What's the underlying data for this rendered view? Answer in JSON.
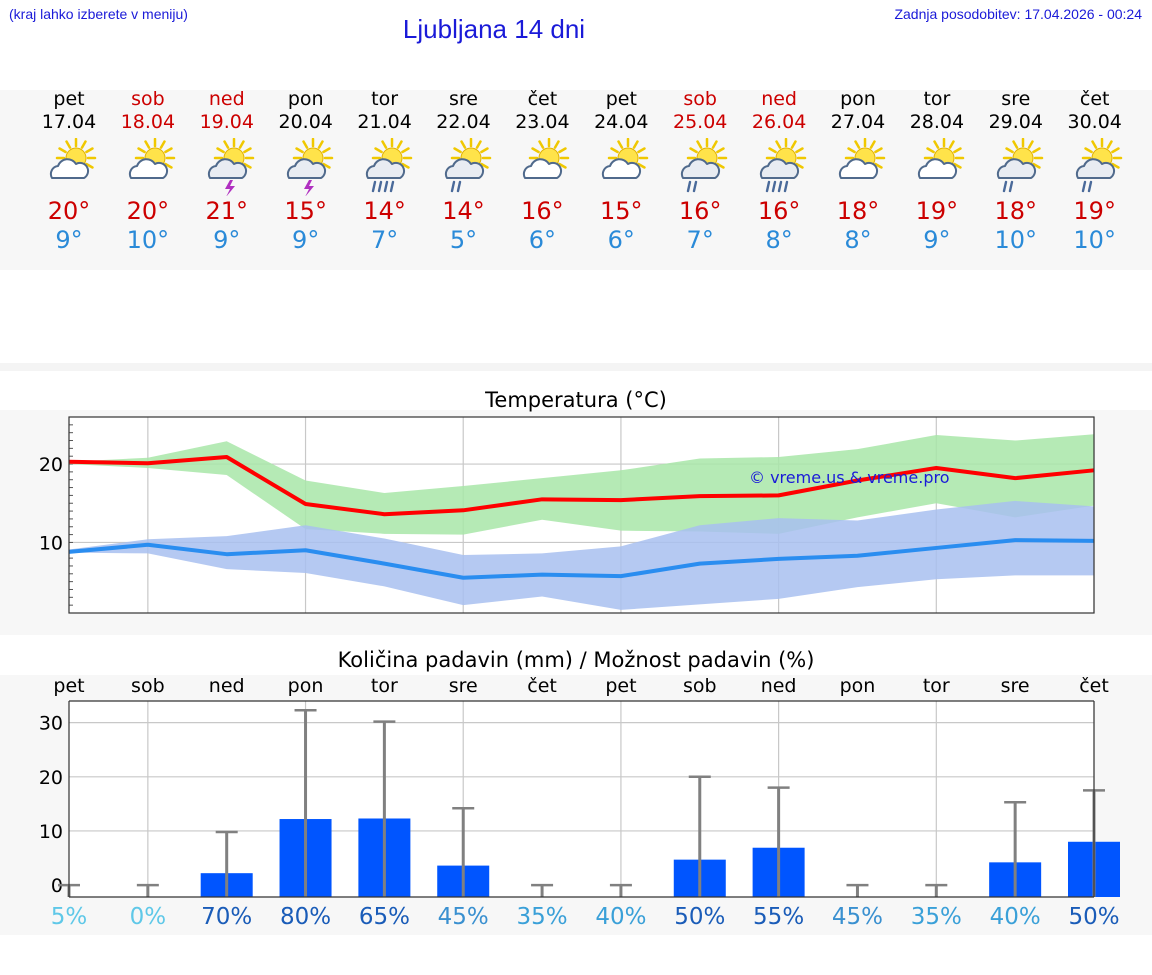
{
  "header": {
    "hint": "(kraj lahko izberete v meniju)",
    "title": "Ljubljana 14 dni",
    "updated": "Zadnja posodobitev: 17.04.2026 - 00:24"
  },
  "days": [
    {
      "name": "pet",
      "date": "17.04",
      "weekend": false,
      "icon": "sun-cloud-icon",
      "max": "20°",
      "min": "9°",
      "precip_pct": "5%"
    },
    {
      "name": "sob",
      "date": "18.04",
      "weekend": true,
      "icon": "sun-cloud-icon",
      "max": "20°",
      "min": "10°",
      "precip_pct": "0%"
    },
    {
      "name": "ned",
      "date": "19.04",
      "weekend": true,
      "icon": "sun-cloud-storm-icon",
      "max": "21°",
      "min": "9°",
      "precip_pct": "70%"
    },
    {
      "name": "pon",
      "date": "20.04",
      "weekend": false,
      "icon": "sun-cloud-storm-icon",
      "max": "15°",
      "min": "9°",
      "precip_pct": "80%"
    },
    {
      "name": "tor",
      "date": "21.04",
      "weekend": false,
      "icon": "sun-cloud-heavy-rain-icon",
      "max": "14°",
      "min": "7°",
      "precip_pct": "65%"
    },
    {
      "name": "sre",
      "date": "22.04",
      "weekend": false,
      "icon": "sun-cloud-rain-icon",
      "max": "14°",
      "min": "5°",
      "precip_pct": "45%"
    },
    {
      "name": "čet",
      "date": "23.04",
      "weekend": false,
      "icon": "sun-cloud-icon",
      "max": "16°",
      "min": "6°",
      "precip_pct": "35%"
    },
    {
      "name": "pet",
      "date": "24.04",
      "weekend": false,
      "icon": "sun-cloud-icon",
      "max": "15°",
      "min": "6°",
      "precip_pct": "40%"
    },
    {
      "name": "sob",
      "date": "25.04",
      "weekend": true,
      "icon": "sun-cloud-rain-icon",
      "max": "16°",
      "min": "7°",
      "precip_pct": "50%"
    },
    {
      "name": "ned",
      "date": "26.04",
      "weekend": true,
      "icon": "sun-cloud-heavy-rain-icon",
      "max": "16°",
      "min": "8°",
      "precip_pct": "55%"
    },
    {
      "name": "pon",
      "date": "27.04",
      "weekend": false,
      "icon": "sun-cloud-icon",
      "max": "18°",
      "min": "8°",
      "precip_pct": "45%"
    },
    {
      "name": "tor",
      "date": "28.04",
      "weekend": false,
      "icon": "sun-cloud-icon",
      "max": "19°",
      "min": "9°",
      "precip_pct": "35%"
    },
    {
      "name": "sre",
      "date": "29.04",
      "weekend": false,
      "icon": "sun-cloud-rain-icon",
      "max": "18°",
      "min": "10°",
      "precip_pct": "40%"
    },
    {
      "name": "čet",
      "date": "30.04",
      "weekend": false,
      "icon": "sun-cloud-rain-icon",
      "max": "19°",
      "min": "10°",
      "precip_pct": "50%"
    }
  ],
  "colors": {
    "weekend": "#cc0000",
    "weekday": "#000000",
    "max": "#ff0000",
    "min": "#2a8df0",
    "max_band": "#a8e6a8",
    "min_band": "#a8c0f0",
    "bar": "#0055ff",
    "whisker": "#808080"
  },
  "chart_data": [
    {
      "type": "line",
      "title": "Temperatura (°C)",
      "watermark": "© vreme.us & vreme.pro",
      "yticks": [
        10,
        20
      ],
      "ylim": [
        1,
        26
      ],
      "series": [
        {
          "values": [
            20.3,
            20.1,
            20.9,
            14.9,
            13.6,
            14.1,
            15.5,
            15.4,
            15.9,
            16.0,
            17.9,
            19.5,
            18.2,
            19.2
          ]
        },
        {
          "values": [
            8.8,
            9.7,
            8.5,
            9.0,
            7.3,
            5.5,
            5.9,
            5.7,
            7.3,
            7.9,
            8.3,
            9.3,
            10.3,
            10.2
          ]
        }
      ],
      "max_band_low": [
        20.0,
        19.5,
        18.6,
        11.7,
        11.1,
        11.0,
        12.9,
        11.5,
        11.4,
        11.1,
        13.2,
        15.0,
        13.2,
        14.7
      ],
      "max_band_high": [
        20.3,
        20.8,
        22.9,
        17.9,
        16.3,
        17.2,
        18.2,
        19.2,
        20.7,
        20.9,
        21.9,
        23.7,
        23.0,
        23.8
      ],
      "min_band_low": [
        8.7,
        8.6,
        6.6,
        6.1,
        4.4,
        2.0,
        3.1,
        1.4,
        2.1,
        2.8,
        4.3,
        5.3,
        5.8,
        5.8
      ],
      "min_band_high": [
        9.1,
        10.4,
        10.8,
        12.2,
        10.5,
        8.4,
        8.6,
        9.5,
        12.2,
        13.1,
        12.8,
        14.2,
        15.3,
        14.6
      ]
    },
    {
      "type": "bar",
      "title": "Količina padavin (mm) / Možnost padavin (%)",
      "categories": [
        "pet",
        "sob",
        "ned",
        "pon",
        "tor",
        "sre",
        "čet",
        "pet",
        "sob",
        "ned",
        "pon",
        "tor",
        "sre",
        "čet"
      ],
      "yticks": [
        0,
        10,
        20,
        30
      ],
      "ylim": [
        0,
        34
      ],
      "values": [
        0,
        0,
        2.2,
        12.2,
        12.3,
        3.6,
        0,
        0,
        4.7,
        6.9,
        0,
        0,
        4.2,
        8.0
      ],
      "max_values": [
        0,
        0,
        9.8,
        32.3,
        30.2,
        14.2,
        0,
        0,
        20.0,
        18.0,
        0,
        0,
        15.3,
        17.5
      ],
      "precip_chance": [
        "5%",
        "0%",
        "70%",
        "80%",
        "65%",
        "45%",
        "35%",
        "40%",
        "50%",
        "55%",
        "45%",
        "35%",
        "40%",
        "50%"
      ]
    }
  ]
}
